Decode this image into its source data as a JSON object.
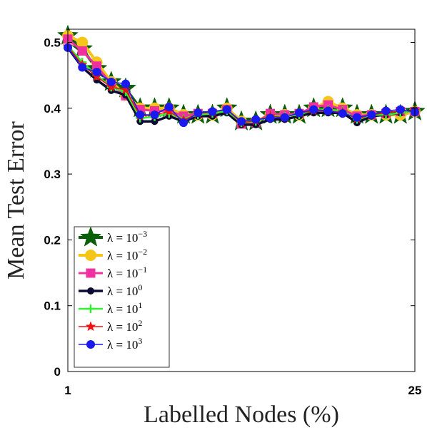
{
  "chart_data": {
    "type": "line",
    "title": "",
    "xlabel": "Labelled Nodes (%)",
    "ylabel": "Mean Test Error",
    "xlim": [
      1,
      25
    ],
    "ylim": [
      0,
      0.52
    ],
    "xticks": [
      1,
      25
    ],
    "xtick_labels": [
      "1",
      "25"
    ],
    "yticks": [
      0,
      0.1,
      0.2,
      0.3,
      0.4,
      0.5
    ],
    "ytick_labels": [
      "0",
      "0.1",
      "0.2",
      "0.3",
      "0.4",
      "0.5"
    ],
    "grid": false,
    "legend_position": "bottom-left",
    "x": [
      1,
      2,
      3,
      4,
      5,
      6,
      7,
      8,
      9,
      10,
      11,
      12,
      13,
      14,
      15,
      16,
      17,
      18,
      19,
      20,
      21,
      22,
      23,
      24,
      25
    ],
    "series": [
      {
        "name": "λ = 10^-3",
        "legend_base": "λ = 10",
        "legend_exp": "−3",
        "color": "#0a5e0a",
        "marker": "star",
        "marker_size": 15,
        "line_width": 4,
        "values": [
          0.51,
          0.49,
          0.46,
          0.44,
          0.43,
          0.4,
          0.4,
          0.4,
          0.39,
          0.39,
          0.39,
          0.4,
          0.38,
          0.38,
          0.39,
          0.39,
          0.39,
          0.4,
          0.4,
          0.4,
          0.39,
          0.39,
          0.39,
          0.39,
          0.395
        ]
      },
      {
        "name": "λ = 10^-2",
        "legend_base": "λ = 10",
        "legend_exp": "−2",
        "color": "#f5c518",
        "marker": "circle",
        "marker_size": 8,
        "line_width": 4,
        "values": [
          0.51,
          0.5,
          0.47,
          0.44,
          0.42,
          0.4,
          0.4,
          0.4,
          0.39,
          0.39,
          0.39,
          0.4,
          0.38,
          0.38,
          0.39,
          0.39,
          0.39,
          0.4,
          0.41,
          0.4,
          0.39,
          0.39,
          0.39,
          0.39,
          0.395
        ]
      },
      {
        "name": "λ = 10^-1",
        "legend_base": "λ = 10",
        "legend_exp": "−1",
        "color": "#f030a0",
        "marker": "square",
        "marker_size": 6.5,
        "line_width": 3,
        "values": [
          0.505,
          0.487,
          0.464,
          0.437,
          0.419,
          0.398,
          0.396,
          0.396,
          0.388,
          0.392,
          0.392,
          0.398,
          0.376,
          0.378,
          0.392,
          0.39,
          0.392,
          0.402,
          0.405,
          0.398,
          0.388,
          0.39,
          0.392,
          0.395,
          0.395
        ]
      },
      {
        "name": "λ = 10^0",
        "legend_base": "λ = 10",
        "legend_exp": "0",
        "color": "#0a0a33",
        "marker": "circle",
        "marker_size": 5,
        "line_width": 3.5,
        "values": [
          0.492,
          0.462,
          0.443,
          0.427,
          0.42,
          0.38,
          0.38,
          0.388,
          0.38,
          0.388,
          0.388,
          0.393,
          0.375,
          0.375,
          0.383,
          0.383,
          0.388,
          0.393,
          0.393,
          0.393,
          0.378,
          0.388,
          0.39,
          0.393,
          0.397
        ]
      },
      {
        "name": "λ = 10^1",
        "legend_base": "λ = 10",
        "legend_exp": "1",
        "color": "#33ee33",
        "marker": "plus",
        "marker_size": 6,
        "line_width": 2.5,
        "values": [
          0.495,
          0.47,
          0.45,
          0.432,
          0.425,
          0.385,
          0.387,
          0.392,
          0.384,
          0.39,
          0.392,
          0.396,
          0.378,
          0.38,
          0.388,
          0.388,
          0.39,
          0.398,
          0.398,
          0.396,
          0.383,
          0.39,
          0.39,
          0.393,
          0.396
        ]
      },
      {
        "name": "λ = 10^2",
        "legend_base": "λ = 10",
        "legend_exp": "2",
        "color": "#ee1111",
        "marker": "star",
        "marker_size": 7,
        "line_width": 1.5,
        "values": [
          0.494,
          0.466,
          0.448,
          0.432,
          0.428,
          0.388,
          0.39,
          0.395,
          0.382,
          0.392,
          0.394,
          0.398,
          0.378,
          0.381,
          0.388,
          0.386,
          0.393,
          0.396,
          0.396,
          0.394,
          0.384,
          0.39,
          0.393,
          0.396,
          0.396
        ]
      },
      {
        "name": "λ = 10^3",
        "legend_base": "λ = 10",
        "legend_exp": "3",
        "color": "#1a1aee",
        "marker": "circle",
        "marker_size": 6,
        "line_width": 1.5,
        "values": [
          0.492,
          0.462,
          0.455,
          0.44,
          0.437,
          0.39,
          0.39,
          0.402,
          0.378,
          0.393,
          0.395,
          0.398,
          0.38,
          0.383,
          0.385,
          0.386,
          0.393,
          0.398,
          0.396,
          0.392,
          0.386,
          0.39,
          0.396,
          0.398,
          0.394
        ]
      }
    ]
  }
}
